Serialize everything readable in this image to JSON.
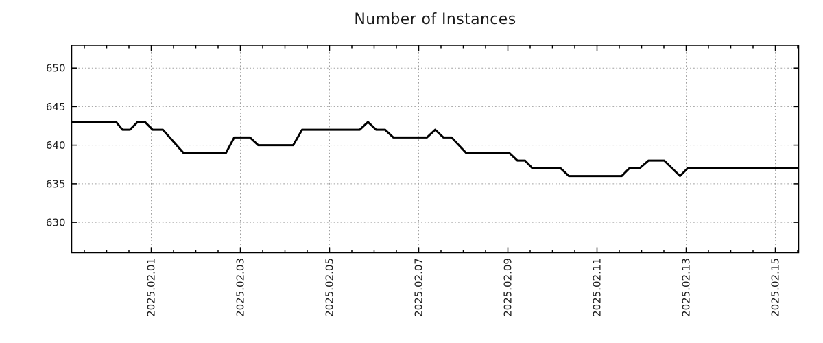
{
  "chart_data": {
    "type": "line",
    "title": "Number of Instances",
    "grid": true,
    "legend": false,
    "x_axis": {
      "label": "",
      "unit": "date",
      "day_zero_label": "2025.02.01",
      "tick_labels": [
        "2025.02.01",
        "2025.02.03",
        "2025.02.05",
        "2025.02.07",
        "2025.02.09",
        "2025.02.11",
        "2025.02.13",
        "2025.02.15"
      ],
      "tick_positions_days": [
        0,
        2,
        4,
        6,
        8,
        10,
        12,
        14
      ],
      "minor_tick_step_days": 0.5,
      "range_days": [
        -1.7846,
        14.5231
      ],
      "tick_label_rotation_deg": -90
    },
    "y_axis": {
      "label": "",
      "tick_labels": [
        "630",
        "635",
        "640",
        "645",
        "650"
      ],
      "tick_values": [
        630,
        635,
        640,
        645,
        650
      ],
      "range": [
        626.05,
        652.95
      ]
    },
    "series": [
      {
        "name": "instances",
        "color": "#000000",
        "points": [
          [
            -1.785,
            643
          ],
          [
            -0.785,
            643
          ],
          [
            -0.646,
            642
          ],
          [
            -0.477,
            642
          ],
          [
            -0.308,
            643
          ],
          [
            -0.138,
            643
          ],
          [
            0.031,
            642
          ],
          [
            0.262,
            642
          ],
          [
            0.723,
            639
          ],
          [
            1.677,
            639
          ],
          [
            1.862,
            641
          ],
          [
            2.215,
            641
          ],
          [
            2.4,
            640
          ],
          [
            3.185,
            640
          ],
          [
            3.385,
            642
          ],
          [
            4.677,
            642
          ],
          [
            4.862,
            643
          ],
          [
            5.046,
            642
          ],
          [
            5.246,
            642
          ],
          [
            5.431,
            641
          ],
          [
            6.185,
            641
          ],
          [
            6.369,
            642
          ],
          [
            6.554,
            641
          ],
          [
            6.738,
            641
          ],
          [
            7.062,
            639
          ],
          [
            8.031,
            639
          ],
          [
            8.215,
            638
          ],
          [
            8.385,
            638
          ],
          [
            8.554,
            637
          ],
          [
            9.185,
            637
          ],
          [
            9.369,
            636
          ],
          [
            10.554,
            636
          ],
          [
            10.723,
            637
          ],
          [
            10.954,
            637
          ],
          [
            11.154,
            638
          ],
          [
            11.508,
            638
          ],
          [
            11.862,
            636
          ],
          [
            12.031,
            637
          ],
          [
            14.523,
            637
          ]
        ]
      }
    ]
  },
  "colors": {
    "background": "#ffffff",
    "grid": "#a0a0a0",
    "axis": "#000000",
    "text": "#1a1a1a",
    "line": "#000000"
  }
}
